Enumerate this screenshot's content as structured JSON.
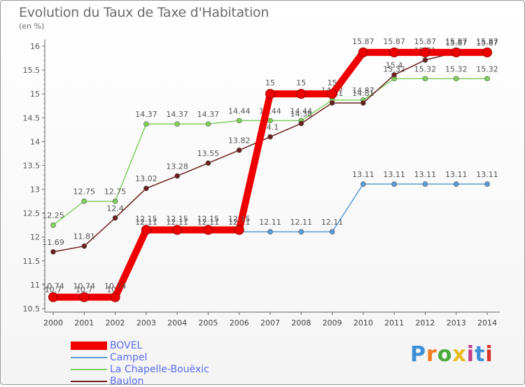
{
  "chart_data": {
    "type": "line",
    "title": "Evolution du Taux de Taxe d'Habitation",
    "unit_label": "(en %)",
    "x": [
      "2000",
      "2001",
      "2002",
      "2003",
      "2004",
      "2005",
      "2006",
      "2007",
      "2008",
      "2009",
      "2010",
      "2011",
      "2012",
      "2013",
      "2014"
    ],
    "ylim": [
      10.5,
      16
    ],
    "yticks": [
      "10.5",
      "11",
      "11.5",
      "12",
      "12.5",
      "13",
      "13.5",
      "14",
      "14.5",
      "15",
      "15.5",
      "16"
    ],
    "grid": false,
    "legend_position": "bottom-left",
    "series": [
      {
        "name": "Campel",
        "color": "#5b9bd5",
        "values": [
          10.7,
          10.7,
          10.7,
          12.11,
          12.11,
          12.11,
          12.11,
          12.11,
          12.11,
          12.11,
          13.11,
          13.11,
          13.11,
          13.11,
          13.11
        ],
        "labels": [
          "10.7",
          "10.7",
          "10.7",
          "12.11",
          "12.11",
          "12.11",
          "12.11",
          "12.11",
          "12.11",
          "12.11",
          "13.11",
          "13.11",
          "13.11",
          "13.11",
          "13.11"
        ]
      },
      {
        "name": "La Chapelle-Bouëxic",
        "color": "#7fd05a",
        "values": [
          12.25,
          12.75,
          12.75,
          14.37,
          14.37,
          14.37,
          14.44,
          14.44,
          14.44,
          14.87,
          14.87,
          15.32,
          15.32,
          15.32,
          15.32
        ],
        "labels": [
          "12.25",
          "12.75",
          "12.75",
          "14.37",
          "14.37",
          "14.37",
          "14.44",
          "14.44",
          "14.44",
          "14.87",
          "14.87",
          "15.32",
          "15.32",
          "15.32",
          "15.32"
        ]
      },
      {
        "name": "Baulon",
        "color": "#6b1e1e",
        "values": [
          11.69,
          11.81,
          12.4,
          13.02,
          13.28,
          13.55,
          13.82,
          14.1,
          14.38,
          14.81,
          14.81,
          15.4,
          15.71,
          15.87,
          15.87
        ],
        "labels": [
          "11.69",
          "11.81",
          "12.4",
          "13.02",
          "13.28",
          "13.55",
          "13.82",
          "14.1",
          "14.38",
          "14.81",
          "14.81",
          "15.4",
          "15.71",
          "15.87",
          "15.87"
        ]
      },
      {
        "name": "BOVEL",
        "color": "#ee0000",
        "values": [
          10.74,
          10.74,
          10.74,
          12.15,
          12.15,
          12.15,
          12.15,
          15,
          15,
          15,
          15.87,
          15.87,
          15.87,
          15.87,
          15.87
        ],
        "labels": [
          "10.74",
          "10.74",
          "10.74",
          "12.15",
          "12.15",
          "12.15",
          "12.15",
          "15",
          "15",
          "15",
          "15.87",
          "15.87",
          "15.87",
          "15.87",
          "15.87"
        ]
      }
    ],
    "legend": [
      {
        "name": "BOVEL",
        "color": "#ee0000",
        "thick": true
      },
      {
        "name": "Campel",
        "color": "#5b9bd5",
        "thick": false
      },
      {
        "name": "La Chapelle-Bouëxic",
        "color": "#7fd05a",
        "thick": false
      },
      {
        "name": "Baulon",
        "color": "#6b1e1e",
        "thick": false
      }
    ]
  },
  "logo": {
    "text": "Proxiti",
    "colors": [
      "#3f8fd6",
      "#f07b1a",
      "#4ba93a",
      "#e8bb1c",
      "#c23b8a",
      "#3f8fd6",
      "#d9342b"
    ]
  }
}
